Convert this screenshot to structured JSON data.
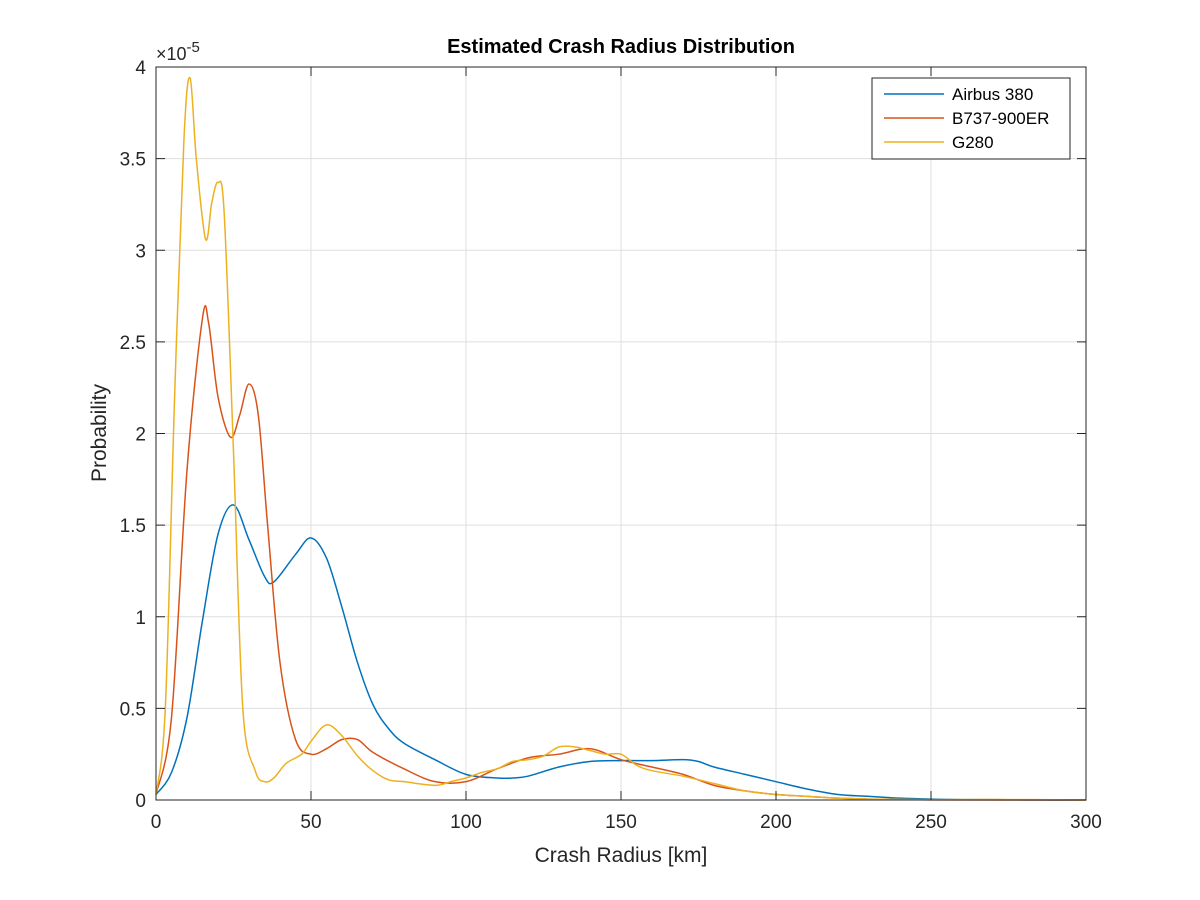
{
  "chart_data": {
    "type": "line",
    "title": "Estimated Crash Radius Distribution",
    "xlabel": "Crash Radius [km]",
    "ylabel": "Probability",
    "xlim": [
      0,
      300
    ],
    "ylim": [
      0,
      4
    ],
    "y_exponent_label": "×10",
    "y_exponent_power": "-5",
    "y_multiplier": 1e-05,
    "grid": true,
    "legend_position": "top-right",
    "xticks": [
      0,
      50,
      100,
      150,
      200,
      250,
      300
    ],
    "xtick_labels": [
      "0",
      "50",
      "100",
      "150",
      "200",
      "250",
      "300"
    ],
    "yticks": [
      0,
      0.5,
      1,
      1.5,
      2,
      2.5,
      3,
      3.5,
      4
    ],
    "ytick_labels": [
      "0",
      "0.5",
      "1",
      "1.5",
      "2",
      "2.5",
      "3",
      "3.5",
      "4"
    ],
    "series": [
      {
        "name": "Airbus 380",
        "color": "#0072BD",
        "x": [
          0,
          5,
          10,
          15,
          20,
          25,
          30,
          35,
          38,
          45,
          50,
          55,
          60,
          65,
          70,
          75,
          80,
          90,
          100,
          110,
          115,
          120,
          130,
          140,
          150,
          160,
          170,
          175,
          180,
          190,
          200,
          210,
          220,
          230,
          240,
          250,
          260,
          270,
          280,
          290,
          300
        ],
        "y": [
          0.03,
          0.15,
          0.45,
          0.98,
          1.45,
          1.61,
          1.42,
          1.22,
          1.19,
          1.34,
          1.43,
          1.32,
          1.05,
          0.75,
          0.52,
          0.39,
          0.31,
          0.22,
          0.14,
          0.12,
          0.12,
          0.13,
          0.18,
          0.21,
          0.215,
          0.215,
          0.22,
          0.21,
          0.18,
          0.14,
          0.1,
          0.06,
          0.03,
          0.02,
          0.01,
          0.005,
          0.002,
          0.002,
          0.001,
          0.0,
          0.0
        ]
      },
      {
        "name": "B737-900ER",
        "color": "#D95319",
        "x": [
          0,
          5,
          10,
          15,
          17,
          20,
          24,
          27,
          30,
          33,
          36,
          40,
          45,
          50,
          55,
          60,
          65,
          70,
          80,
          90,
          100,
          110,
          120,
          130,
          140,
          150,
          160,
          170,
          180,
          190,
          200,
          210,
          220,
          230,
          250,
          300
        ],
        "y": [
          0.03,
          0.45,
          1.8,
          2.63,
          2.6,
          2.2,
          1.98,
          2.1,
          2.27,
          2.1,
          1.5,
          0.75,
          0.33,
          0.25,
          0.28,
          0.33,
          0.33,
          0.26,
          0.17,
          0.1,
          0.1,
          0.17,
          0.23,
          0.25,
          0.28,
          0.22,
          0.18,
          0.14,
          0.08,
          0.05,
          0.03,
          0.02,
          0.01,
          0.005,
          0.001,
          0.0
        ]
      },
      {
        "name": "G280",
        "color": "#EDB120",
        "x": [
          0,
          3,
          6,
          9,
          11,
          13,
          16,
          18,
          20,
          22,
          25,
          28,
          32,
          35,
          38,
          42,
          47,
          50,
          55,
          60,
          65,
          70,
          75,
          80,
          90,
          95,
          100,
          105,
          110,
          115,
          120,
          125,
          130,
          135,
          140,
          145,
          150,
          155,
          160,
          170,
          180,
          190,
          200,
          210,
          220,
          230,
          250,
          270,
          300
        ],
        "y": [
          0.03,
          0.5,
          2.2,
          3.6,
          3.94,
          3.5,
          3.06,
          3.26,
          3.37,
          3.2,
          1.9,
          0.5,
          0.16,
          0.1,
          0.12,
          0.2,
          0.25,
          0.32,
          0.41,
          0.35,
          0.24,
          0.16,
          0.11,
          0.1,
          0.08,
          0.1,
          0.12,
          0.15,
          0.17,
          0.21,
          0.22,
          0.24,
          0.29,
          0.29,
          0.27,
          0.25,
          0.25,
          0.19,
          0.16,
          0.13,
          0.09,
          0.05,
          0.03,
          0.02,
          0.01,
          0.005,
          0.002,
          0.003,
          0.0
        ]
      }
    ]
  }
}
